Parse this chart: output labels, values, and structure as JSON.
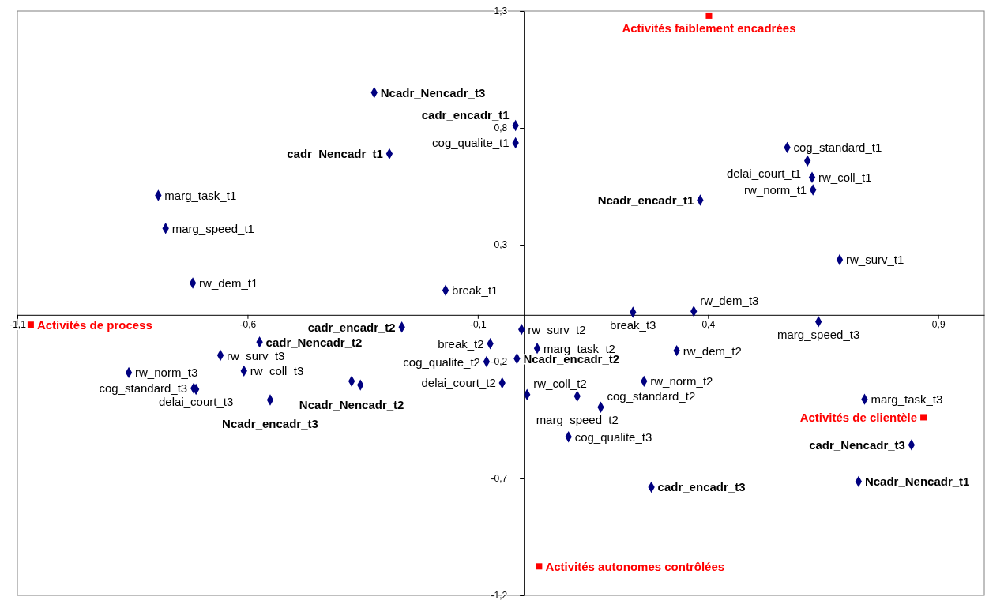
{
  "chart_data": {
    "type": "scatter",
    "xlim": [
      -1.1,
      1.0
    ],
    "ylim": [
      -1.2,
      1.3
    ],
    "xticks": [
      {
        "value": -1.1,
        "label": "-1,1"
      },
      {
        "value": -0.6,
        "label": "-0,6"
      },
      {
        "value": -0.1,
        "label": "-0,1"
      },
      {
        "value": 0.4,
        "label": "0,4"
      },
      {
        "value": 0.9,
        "label": "0,9"
      }
    ],
    "yticks": [
      {
        "value": 1.3,
        "label": "1,3"
      },
      {
        "value": 0.8,
        "label": "0,8"
      },
      {
        "value": 0.3,
        "label": "0,3"
      },
      {
        "value": -0.2,
        "label": "-0,2"
      },
      {
        "value": -0.7,
        "label": "-0,7"
      },
      {
        "value": -1.2,
        "label": "-1,2"
      }
    ],
    "grid": false,
    "series": [
      {
        "color": "#000080",
        "marker": "diamond",
        "x": [
          -0.794,
          -0.778,
          -0.719,
          -0.17,
          -0.018,
          0.572,
          0.616,
          0.626,
          0.628,
          0.686,
          0.237,
          0.369,
          0.64,
          -0.073,
          -0.005,
          0.029,
          0.332,
          -0.081,
          -0.047,
          0.007,
          0.261,
          0.116,
          0.167,
          0.097,
          0.74,
          -0.858,
          -0.659,
          -0.608,
          -0.717,
          -0.712
        ],
        "values": [
          0.511,
          0.37,
          0.136,
          0.105,
          0.736,
          0.716,
          0.659,
          0.588,
          0.535,
          0.236,
          0.011,
          0.015,
          -0.029,
          -0.123,
          -0.062,
          -0.143,
          -0.153,
          -0.2,
          -0.291,
          -0.341,
          -0.284,
          -0.348,
          -0.395,
          -0.522,
          -0.361,
          -0.247,
          -0.173,
          -0.24,
          -0.314,
          -0.318
        ]
      },
      {
        "color": "#000080",
        "marker": "diamond",
        "x": [
          -0.325,
          -0.018,
          -0.292,
          0.383,
          -0.265,
          -0.574,
          -0.374,
          -0.015,
          -0.551,
          0.277,
          0.842,
          0.727,
          -0.355
        ],
        "values": [
          0.951,
          0.81,
          0.689,
          0.491,
          -0.052,
          -0.116,
          -0.284,
          -0.187,
          -0.364,
          -0.737,
          -0.556,
          -0.713,
          -0.3
        ]
      },
      {
        "color": "#ff0000",
        "marker": "square",
        "x": [
          -1.071,
          0.402,
          0.868,
          0.033
        ],
        "values": [
          -0.042,
          1.28,
          -0.438,
          -1.076
        ]
      }
    ],
    "annotations": [
      {
        "text": "marg_task_t1",
        "x": -0.794,
        "y": 0.511
      },
      {
        "text": "marg_speed_t1",
        "x": -0.778,
        "y": 0.37
      },
      {
        "text": "rw_dem_t1",
        "x": -0.719,
        "y": 0.136
      },
      {
        "text": "break_t1",
        "x": -0.17,
        "y": 0.105
      },
      {
        "text": "cog_qualite_t1",
        "x": -0.018,
        "y": 0.736
      },
      {
        "text": "cog_standard_t1",
        "x": 0.572,
        "y": 0.716
      },
      {
        "text": "delai_court_t1",
        "x": 0.616,
        "y": 0.659
      },
      {
        "text": "rw_coll_t1",
        "x": 0.626,
        "y": 0.588
      },
      {
        "text": "rw_norm_t1",
        "x": 0.628,
        "y": 0.535
      },
      {
        "text": "rw_surv_t1",
        "x": 0.686,
        "y": 0.236
      },
      {
        "text": "break_t3",
        "x": 0.237,
        "y": 0.011
      },
      {
        "text": "rw_dem_t3",
        "x": 0.369,
        "y": 0.015
      },
      {
        "text": "marg_speed_t3",
        "x": 0.64,
        "y": -0.029
      },
      {
        "text": "break_t2",
        "x": -0.073,
        "y": -0.123
      },
      {
        "text": "rw_surv_t2",
        "x": -0.005,
        "y": -0.062
      },
      {
        "text": "marg_task_t2",
        "x": 0.029,
        "y": -0.143
      },
      {
        "text": "rw_dem_t2",
        "x": 0.332,
        "y": -0.153
      },
      {
        "text": "cog_qualite_t2",
        "x": -0.081,
        "y": -0.2
      },
      {
        "text": "delai_court_t2",
        "x": -0.047,
        "y": -0.291
      },
      {
        "text": "rw_coll_t2",
        "x": 0.007,
        "y": -0.341
      },
      {
        "text": "rw_norm_t2",
        "x": 0.261,
        "y": -0.284
      },
      {
        "text": "marg_speed_t2",
        "x": 0.116,
        "y": -0.348
      },
      {
        "text": "cog_standard_t2",
        "x": 0.167,
        "y": -0.395
      },
      {
        "text": "cog_qualite_t3",
        "x": 0.097,
        "y": -0.522
      },
      {
        "text": "marg_task_t3",
        "x": 0.74,
        "y": -0.361
      },
      {
        "text": "rw_norm_t3",
        "x": -0.858,
        "y": -0.247
      },
      {
        "text": "rw_surv_t3",
        "x": -0.659,
        "y": -0.173
      },
      {
        "text": "rw_coll_t3",
        "x": -0.608,
        "y": -0.24
      },
      {
        "text": "cog_standard_t3",
        "x": -0.717,
        "y": -0.314
      },
      {
        "text": "delai_court_t3",
        "x": -0.712,
        "y": -0.318
      },
      {
        "text": "Ncadr_Nencadr_t3",
        "x": -0.325,
        "y": 0.951
      },
      {
        "text": "cadr_encadr_t1",
        "x": -0.018,
        "y": 0.81
      },
      {
        "text": "cadr_Nencadr_t1",
        "x": -0.292,
        "y": 0.689
      },
      {
        "text": "Ncadr_encadr_t1",
        "x": 0.383,
        "y": 0.491
      },
      {
        "text": "cadr_encadr_t2",
        "x": -0.265,
        "y": -0.052
      },
      {
        "text": "cadr_Nencadr_t2",
        "x": -0.574,
        "y": -0.116
      },
      {
        "text": "Ncadr_Nencadr_t2",
        "x": -0.374,
        "y": -0.284
      },
      {
        "text": "Ncadr_encadr_t2",
        "x": -0.015,
        "y": -0.187
      },
      {
        "text": "Ncadr_encadr_t3",
        "x": -0.551,
        "y": -0.364
      },
      {
        "text": "cadr_encadr_t3",
        "x": 0.277,
        "y": -0.737
      },
      {
        "text": "cadr_Nencadr_t3",
        "x": 0.842,
        "y": -0.556
      },
      {
        "text": "Ncadr_Nencadr_t1",
        "x": 0.727,
        "y": -0.713
      },
      {
        "text": "Activités de process",
        "x": -1.071,
        "y": -0.042
      },
      {
        "text": "Activités faiblement encadrées",
        "x": 0.402,
        "y": 1.28
      },
      {
        "text": "Activités de clientèle",
        "x": 0.868,
        "y": -0.438
      },
      {
        "text": "Activités autonomes contrôlées",
        "x": 0.033,
        "y": -1.076
      }
    ]
  }
}
